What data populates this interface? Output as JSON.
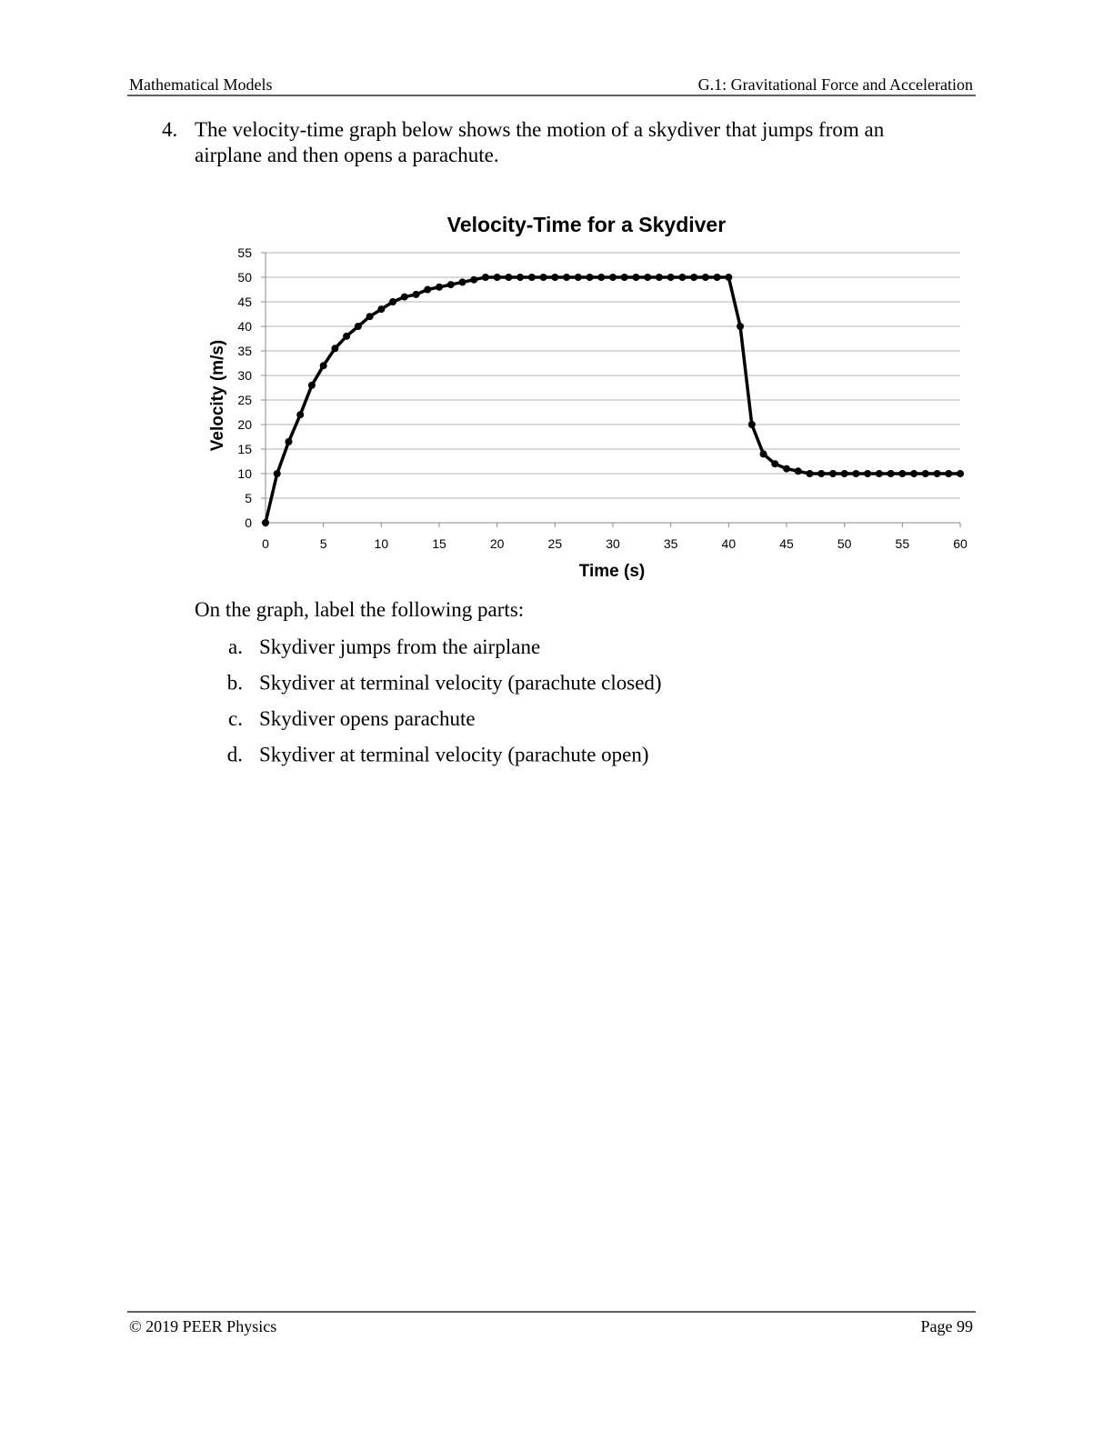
{
  "header": {
    "left": "Mathematical Models",
    "right": "G.1: Gravitational Force and Acceleration"
  },
  "question": {
    "number": "4.",
    "lines": [
      "The velocity-time graph below shows the motion of a skydiver that jumps from an",
      "airplane and then opens a parachute."
    ]
  },
  "chart_data": {
    "type": "line",
    "title": "Velocity-Time for a Skydiver",
    "x_label": "Time (s)",
    "y_label": "Velocity (m/s)",
    "x": [
      0,
      1,
      2,
      3,
      4,
      5,
      6,
      7,
      8,
      9,
      10,
      11,
      12,
      13,
      14,
      15,
      16,
      17,
      18,
      19,
      20,
      21,
      22,
      23,
      24,
      25,
      26,
      27,
      28,
      29,
      30,
      31,
      32,
      33,
      34,
      35,
      36,
      37,
      38,
      39,
      40,
      41,
      42,
      43,
      44,
      45,
      46,
      47,
      48,
      49,
      50,
      51,
      52,
      53,
      54,
      55,
      56,
      57,
      58,
      59,
      60
    ],
    "values": [
      0,
      10,
      16.5,
      22,
      28,
      32,
      35.5,
      38,
      40,
      42,
      43.5,
      45,
      46,
      46.5,
      47.5,
      48,
      48.5,
      49,
      49.5,
      50,
      50,
      50,
      50,
      50,
      50,
      50,
      50,
      50,
      50,
      50,
      50,
      50,
      50,
      50,
      50,
      50,
      50,
      50,
      50,
      50,
      50,
      40,
      20,
      14,
      12,
      11,
      10.5,
      10,
      10,
      10,
      10,
      10,
      10,
      10,
      10,
      10,
      10,
      10,
      10,
      10,
      10
    ],
    "color": "#000000",
    "xlim": [
      0,
      60
    ],
    "ylim": [
      0,
      55
    ],
    "xticks": [
      0,
      5,
      10,
      15,
      20,
      25,
      30,
      35,
      40,
      45,
      50,
      55,
      60
    ],
    "yticks": [
      0,
      5,
      10,
      15,
      20,
      25,
      30,
      35,
      40,
      45,
      50,
      55
    ],
    "grid": true
  },
  "instructions": "On the graph, label the following parts:",
  "items": [
    {
      "letter": "a.",
      "text": "Skydiver jumps from the airplane"
    },
    {
      "letter": "b.",
      "text": "Skydiver at terminal velocity (parachute closed)"
    },
    {
      "letter": "c.",
      "text": "Skydiver opens parachute"
    },
    {
      "letter": "d.",
      "text": "Skydiver at terminal velocity (parachute open)"
    }
  ],
  "footer": {
    "left": "© 2019 PEER Physics",
    "right": "Page 99"
  }
}
